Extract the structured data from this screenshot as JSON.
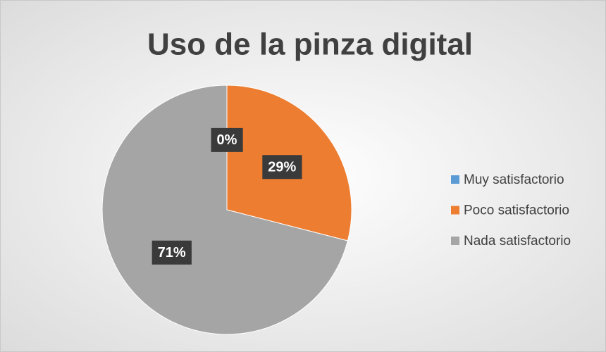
{
  "chart_data": {
    "type": "pie",
    "title": "Uso de la pinza digital",
    "categories": [
      "Muy satisfactorio",
      "Poco satisfactorio",
      "Nada satisfactorio"
    ],
    "values": [
      0,
      29,
      71
    ],
    "value_labels": [
      "0%",
      "29%",
      "71%"
    ],
    "colors": [
      "#5b9bd5",
      "#ed7d31",
      "#a5a5a5"
    ],
    "legend": "right"
  }
}
